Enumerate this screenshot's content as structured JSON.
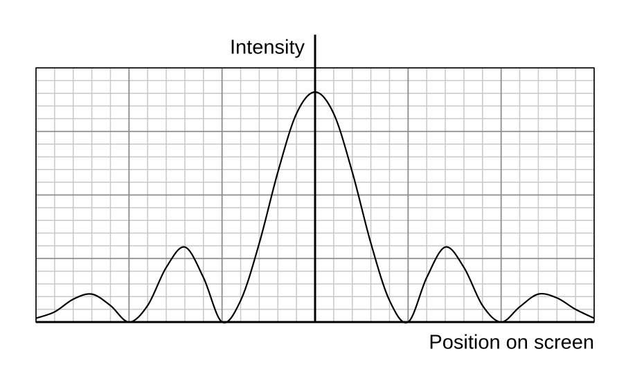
{
  "chart_data": {
    "type": "line",
    "y_label": "Intensity",
    "x_label": "Position on screen",
    "x": [
      -15,
      -14,
      -13,
      -12,
      -11,
      -10,
      -9,
      -8,
      -7,
      -6,
      -5,
      -4,
      -3,
      -2,
      -1,
      0,
      1,
      2,
      3,
      4,
      5,
      6,
      7,
      8,
      9,
      10,
      11,
      12,
      13,
      14,
      15
    ],
    "values": [
      0.3,
      0.8,
      1.8,
      2.2,
      1.3,
      0,
      1.3,
      4.3,
      5.9,
      3.5,
      0,
      1.7,
      6.2,
      11.8,
      16.4,
      18.1,
      16.4,
      11.8,
      6.2,
      1.7,
      0,
      3.5,
      5.9,
      4.3,
      1.3,
      0,
      1.2,
      2.2,
      1.9,
      1.0,
      0.3
    ],
    "color": "#000000",
    "xlim": [
      -15,
      15
    ],
    "ylim": [
      0,
      20
    ],
    "xticks": [
      -15,
      -10,
      -5,
      0,
      5,
      10,
      15
    ],
    "yticks": [
      0,
      5,
      10,
      15,
      20
    ],
    "grid": true
  }
}
